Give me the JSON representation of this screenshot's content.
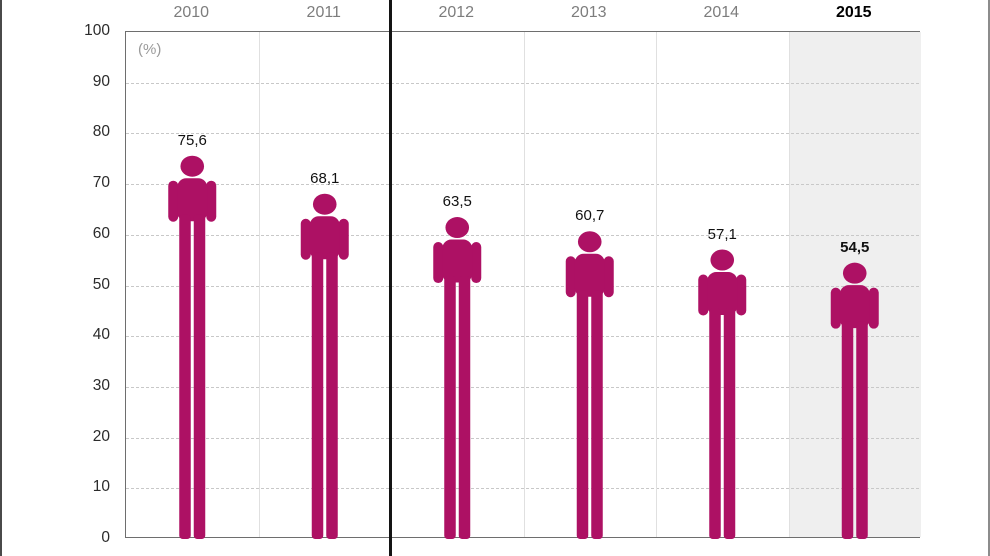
{
  "chart_data": {
    "type": "bar",
    "subtype": "pictogram-person-chart",
    "categories": [
      "2010",
      "2011",
      "2012",
      "2013",
      "2014",
      "2015"
    ],
    "values": [
      75.6,
      68.1,
      63.5,
      60.7,
      57.1,
      54.5
    ],
    "value_labels": [
      "75,6",
      "68,1",
      "63,5",
      "60,7",
      "57,1",
      "54,5"
    ],
    "unit_label": "(%)",
    "title": "",
    "xlabel": "",
    "ylabel": "",
    "ylim": [
      0,
      100
    ],
    "ytick_step": 10,
    "ytick_labels": [
      "0",
      "10",
      "20",
      "30",
      "40",
      "50",
      "60",
      "70",
      "80",
      "90",
      "100"
    ],
    "grid": "horizontal-dashed",
    "legend": "none",
    "highlighted_category": "2015",
    "divider_between": [
      "2011",
      "2012"
    ],
    "colors": {
      "figure": "#ad1164",
      "highlight_bg": "#efefef",
      "year_label": "#7d7d7d",
      "highlight_year_label": "#000000",
      "value_label": "#111111",
      "axis_border": "#6e6e6e",
      "grid_dashed": "#c8c8c8",
      "grid_vertical": "#e0e0e0",
      "divider_line": "#141414",
      "unit_label": "#9a9a9a"
    }
  }
}
